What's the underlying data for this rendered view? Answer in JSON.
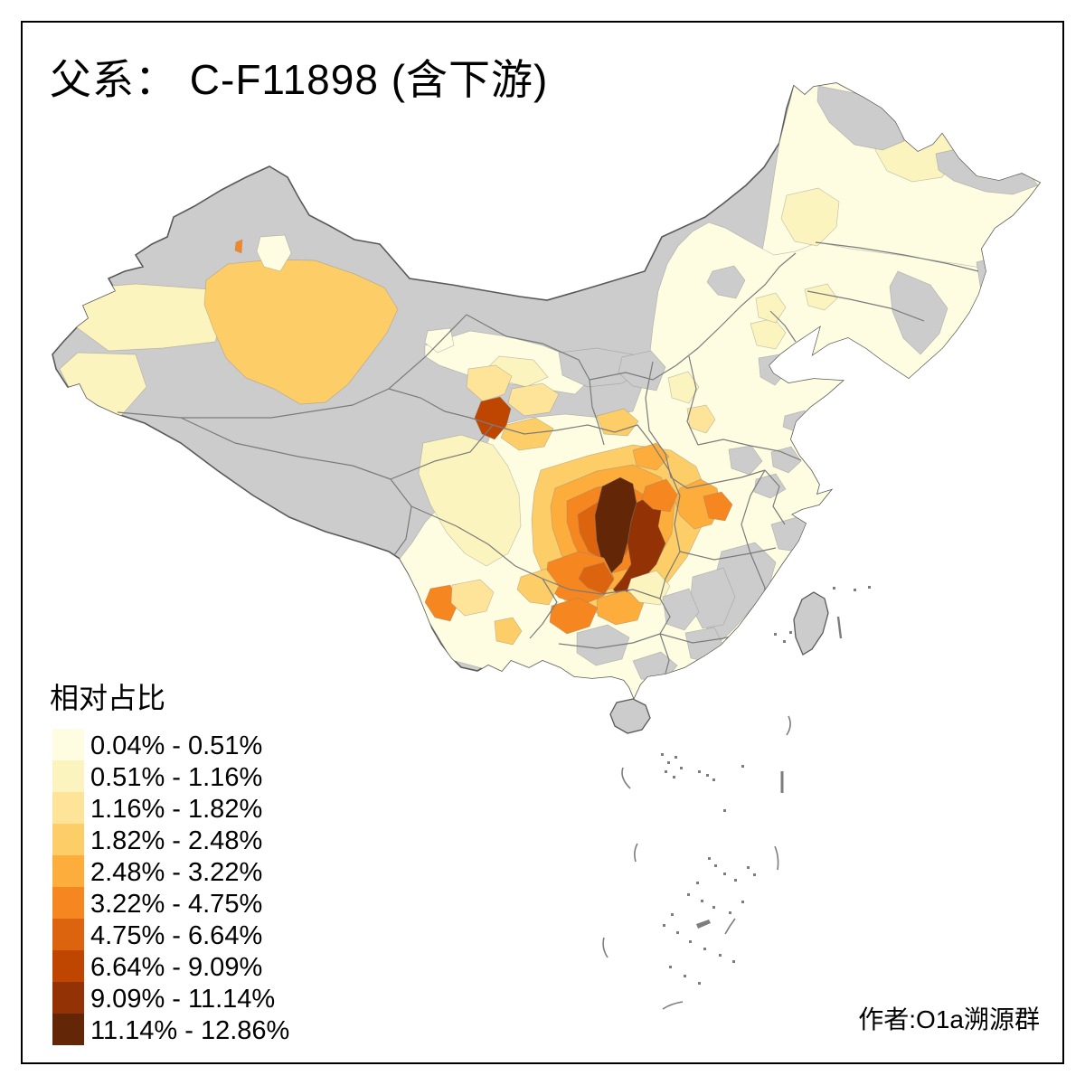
{
  "title": "父系： C-F11898 (含下游)",
  "credit": "作者:O1a溯源群",
  "legend": {
    "title": "相对占比",
    "classes": [
      {
        "label": "0.04% - 0.51%",
        "color": "#FFFDE1"
      },
      {
        "label": "0.51% - 1.16%",
        "color": "#FCF4BE"
      },
      {
        "label": "1.16% - 1.82%",
        "color": "#FDE499"
      },
      {
        "label": "1.82% - 2.48%",
        "color": "#FDCD67"
      },
      {
        "label": "2.48% - 3.22%",
        "color": "#FCAD3B"
      },
      {
        "label": "3.22% - 4.75%",
        "color": "#F58620"
      },
      {
        "label": "4.75% - 6.64%",
        "color": "#DD640E"
      },
      {
        "label": "6.64% - 9.09%",
        "color": "#BF4600"
      },
      {
        "label": "9.09% - 11.14%",
        "color": "#933305"
      },
      {
        "label": "11.14% - 12.86%",
        "color": "#632606"
      }
    ],
    "no_data_color": "#CCCCCC"
  },
  "map": {
    "outline_color": "#595959",
    "province_border_color": "#7B7B7B",
    "background_color": "#FFFFFF",
    "regions": [
      {
        "name": "northeast-china-base",
        "cls": 0
      },
      {
        "name": "east-china-base",
        "cls": 0
      },
      {
        "name": "hexi-corridor",
        "cls": 0
      },
      {
        "name": "xinjiang-aksu",
        "cls": 1
      },
      {
        "name": "xinjiang-kashgar",
        "cls": 1
      },
      {
        "name": "xinjiang-bayingolin",
        "cls": 3
      },
      {
        "name": "xinjiang-altay-dot",
        "cls": 5
      },
      {
        "name": "xinjiang-cream-spot",
        "cls": 0
      },
      {
        "name": "gansu-dunhuang-spot",
        "cls": 0
      },
      {
        "name": "hexi-pale-patch",
        "cls": 1
      },
      {
        "name": "lanzhou-tan",
        "cls": 2
      },
      {
        "name": "qinghai-haidong-tan",
        "cls": 2
      },
      {
        "name": "gansu-linxia",
        "cls": 7
      },
      {
        "name": "west-sichuan-pale",
        "cls": 1
      },
      {
        "name": "gansu-south-tan",
        "cls": 3
      },
      {
        "name": "sichuan-ring-outer",
        "cls": 3
      },
      {
        "name": "sichuan-ring-mid",
        "cls": 4
      },
      {
        "name": "sichuan-ring-inner",
        "cls": 5
      },
      {
        "name": "sichuan-ring-core-edge",
        "cls": 6
      },
      {
        "name": "chongqing-east-dark",
        "cls": 8
      },
      {
        "name": "ne-sichuan-darkest",
        "cls": 9
      },
      {
        "name": "wanzhou-orange",
        "cls": 5
      },
      {
        "name": "guanzhong-tan",
        "cls": 3
      },
      {
        "name": "hanzhong-orange",
        "cls": 4
      },
      {
        "name": "hubei-west-orange",
        "cls": 4
      },
      {
        "name": "hubei-west-spot",
        "cls": 5
      },
      {
        "name": "hubei-center-tan",
        "cls": 2
      },
      {
        "name": "south-sichuan-orange",
        "cls": 5
      },
      {
        "name": "south-sichuan-dark",
        "cls": 6
      },
      {
        "name": "panzhihua-tan",
        "cls": 3
      },
      {
        "name": "guizhou-west-orange",
        "cls": 5
      },
      {
        "name": "guizhou-zunyi-orange",
        "cls": 4
      },
      {
        "name": "yunnan-west-orange",
        "cls": 5
      },
      {
        "name": "yunnan-tan",
        "cls": 2
      },
      {
        "name": "yunnan-south-spot",
        "cls": 3
      },
      {
        "name": "hunan-west-pale",
        "cls": 1
      },
      {
        "name": "beijing-pale",
        "cls": 1
      },
      {
        "name": "shanxi-pale",
        "cls": 1
      },
      {
        "name": "jiamusi-pale",
        "cls": 1
      },
      {
        "name": "daqing-pale",
        "cls": 1
      },
      {
        "name": "liaoning-pale",
        "cls": 1
      },
      {
        "name": "jilin-pale-spot",
        "cls": 1
      },
      {
        "name": "tianjin-nodata",
        "cls": null
      },
      {
        "name": "alxa-nodata",
        "cls": null
      },
      {
        "name": "north-shaanxi-nodata",
        "cls": null
      },
      {
        "name": "hebei-north-nodata",
        "cls": null
      },
      {
        "name": "fujian-nodata",
        "cls": null
      },
      {
        "name": "south-jiangxi-nodata",
        "cls": null
      },
      {
        "name": "south-zhejiang-nodata",
        "cls": null
      },
      {
        "name": "southeast-hunan-nodata",
        "cls": null
      },
      {
        "name": "guangxi-nodata-1",
        "cls": null
      },
      {
        "name": "guangxi-nodata-2",
        "cls": null
      },
      {
        "name": "guangdong-nodata",
        "cls": null
      },
      {
        "name": "anhui-nodata-1",
        "cls": null
      },
      {
        "name": "anhui-nodata-2",
        "cls": null
      },
      {
        "name": "jiangsu-nodata",
        "cls": null
      },
      {
        "name": "hubei-north-nodata",
        "cls": null
      },
      {
        "name": "northeast-nodata-1",
        "cls": null
      },
      {
        "name": "northeast-nodata-2",
        "cls": null
      },
      {
        "name": "northeast-nodata-3",
        "cls": null
      },
      {
        "name": "northeast-nodata-4",
        "cls": null
      }
    ],
    "islands": [
      {
        "name": "hainan-island",
        "cls": null
      },
      {
        "name": "taiwan-island",
        "cls": null
      }
    ]
  },
  "chart_data": {
    "type": "choropleth_map",
    "geography": "China, prefecture-level divisions",
    "measure": "相对占比 of paternal haplogroup C-F11898 (incl. downstream)",
    "value_range": [
      "0.04%",
      "12.86%"
    ],
    "class_breaks": [
      "0.04%",
      "0.51%",
      "1.16%",
      "1.82%",
      "2.48%",
      "3.22%",
      "4.75%",
      "6.64%",
      "9.09%",
      "11.14%",
      "12.86%"
    ],
    "palette": [
      "#FFFDE1",
      "#FCF4BE",
      "#FDE499",
      "#FDCD67",
      "#FCAD3B",
      "#F58620",
      "#DD640E",
      "#BF4600",
      "#933305",
      "#632606"
    ],
    "no_data_color": "#CCCCCC",
    "legend_position": "bottom-left",
    "notes": "Peak values (9.09%-12.86%) concentrate in NE Sichuan / Chongqing; secondary highs (2.5%-6.6%) in S Gansu, S Shaanxi, S Sichuan, Guizhou, W Yunnan, W Hubei and SE Xinjiang (Bayingolin ~1.8-2.5%); low values (<1.2%) across East and Northeast China; gray = no data (Tibet, Qinghai, most Inner Mongolia, Fujian, Hainan, Taiwan, scattered prefectures)."
  }
}
